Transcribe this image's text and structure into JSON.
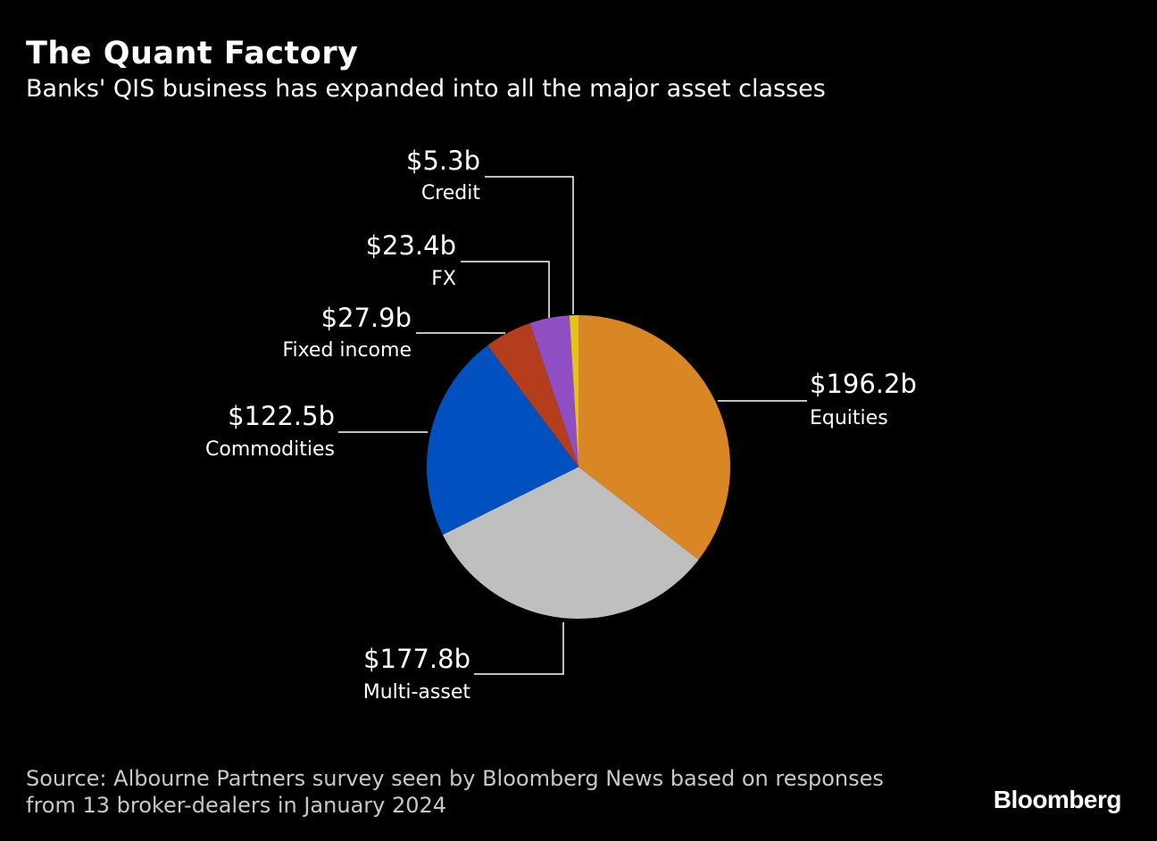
{
  "title": "The Quant Factory",
  "subtitle": "Banks' QIS business has expanded into all the major asset classes",
  "source": {
    "line1": "Source: Albourne Partners survey seen by Bloomberg News based on responses",
    "line2": "from 13 broker-dealers in January 2024"
  },
  "logo": "Bloomberg",
  "chart_data": {
    "type": "pie",
    "title": "The Quant Factory",
    "subtitle": "Banks' QIS business has expanded into all the major asset classes",
    "start": "12 o'clock",
    "direction": "clockwise",
    "slices": [
      {
        "name": "Equities",
        "label": "$196.2b",
        "value": 196.2,
        "color": "#d98725"
      },
      {
        "name": "Multi-asset",
        "label": "$177.8b",
        "value": 177.8,
        "color": "#bfbfbf"
      },
      {
        "name": "Commodities",
        "label": "$122.5b",
        "value": 122.5,
        "color": "#0050bf"
      },
      {
        "name": "Fixed income",
        "label": "$27.9b",
        "value": 27.9,
        "color": "#b33d1c"
      },
      {
        "name": "FX",
        "label": "$23.4b",
        "value": 23.4,
        "color": "#8f4fc2"
      },
      {
        "name": "Credit",
        "label": "$5.3b",
        "value": 5.3,
        "color": "#e3c21c"
      }
    ]
  }
}
